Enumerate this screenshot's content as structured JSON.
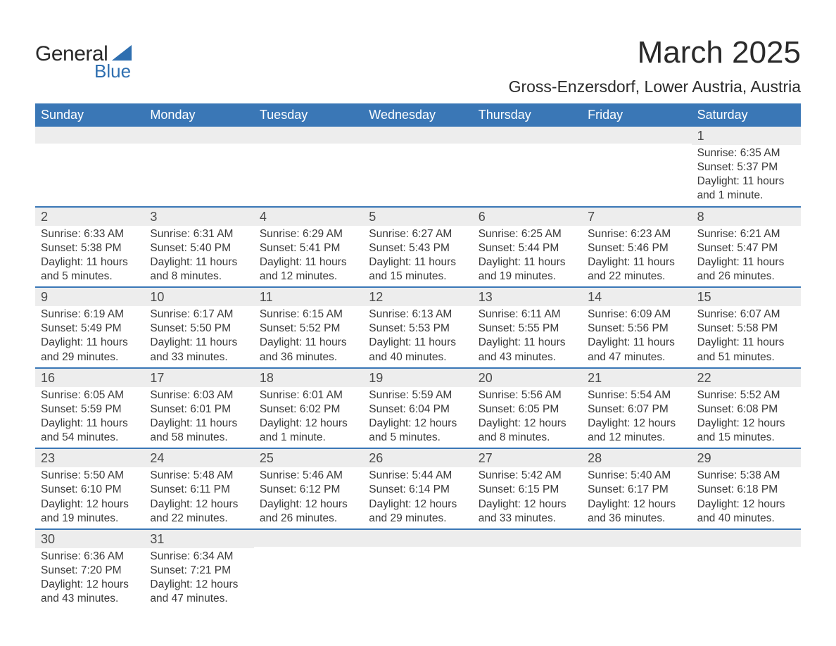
{
  "brand": {
    "general": "General",
    "blue": "Blue",
    "triangle_color": "#2f6fb0"
  },
  "header": {
    "month_title": "March 2025",
    "location": "Gross-Enzersdorf, Lower Austria, Austria"
  },
  "calendar": {
    "header_bg": "#3a77b6",
    "header_fg": "#ffffff",
    "daynum_bg": "#ededed",
    "row_border": "#3a77b6",
    "days_of_week": [
      "Sunday",
      "Monday",
      "Tuesday",
      "Wednesday",
      "Thursday",
      "Friday",
      "Saturday"
    ],
    "weeks": [
      [
        {
          "day": "",
          "sunrise": "",
          "sunset": "",
          "daylight": ""
        },
        {
          "day": "",
          "sunrise": "",
          "sunset": "",
          "daylight": ""
        },
        {
          "day": "",
          "sunrise": "",
          "sunset": "",
          "daylight": ""
        },
        {
          "day": "",
          "sunrise": "",
          "sunset": "",
          "daylight": ""
        },
        {
          "day": "",
          "sunrise": "",
          "sunset": "",
          "daylight": ""
        },
        {
          "day": "",
          "sunrise": "",
          "sunset": "",
          "daylight": ""
        },
        {
          "day": "1",
          "sunrise": "Sunrise: 6:35 AM",
          "sunset": "Sunset: 5:37 PM",
          "daylight": "Daylight: 11 hours and 1 minute."
        }
      ],
      [
        {
          "day": "2",
          "sunrise": "Sunrise: 6:33 AM",
          "sunset": "Sunset: 5:38 PM",
          "daylight": "Daylight: 11 hours and 5 minutes."
        },
        {
          "day": "3",
          "sunrise": "Sunrise: 6:31 AM",
          "sunset": "Sunset: 5:40 PM",
          "daylight": "Daylight: 11 hours and 8 minutes."
        },
        {
          "day": "4",
          "sunrise": "Sunrise: 6:29 AM",
          "sunset": "Sunset: 5:41 PM",
          "daylight": "Daylight: 11 hours and 12 minutes."
        },
        {
          "day": "5",
          "sunrise": "Sunrise: 6:27 AM",
          "sunset": "Sunset: 5:43 PM",
          "daylight": "Daylight: 11 hours and 15 minutes."
        },
        {
          "day": "6",
          "sunrise": "Sunrise: 6:25 AM",
          "sunset": "Sunset: 5:44 PM",
          "daylight": "Daylight: 11 hours and 19 minutes."
        },
        {
          "day": "7",
          "sunrise": "Sunrise: 6:23 AM",
          "sunset": "Sunset: 5:46 PM",
          "daylight": "Daylight: 11 hours and 22 minutes."
        },
        {
          "day": "8",
          "sunrise": "Sunrise: 6:21 AM",
          "sunset": "Sunset: 5:47 PM",
          "daylight": "Daylight: 11 hours and 26 minutes."
        }
      ],
      [
        {
          "day": "9",
          "sunrise": "Sunrise: 6:19 AM",
          "sunset": "Sunset: 5:49 PM",
          "daylight": "Daylight: 11 hours and 29 minutes."
        },
        {
          "day": "10",
          "sunrise": "Sunrise: 6:17 AM",
          "sunset": "Sunset: 5:50 PM",
          "daylight": "Daylight: 11 hours and 33 minutes."
        },
        {
          "day": "11",
          "sunrise": "Sunrise: 6:15 AM",
          "sunset": "Sunset: 5:52 PM",
          "daylight": "Daylight: 11 hours and 36 minutes."
        },
        {
          "day": "12",
          "sunrise": "Sunrise: 6:13 AM",
          "sunset": "Sunset: 5:53 PM",
          "daylight": "Daylight: 11 hours and 40 minutes."
        },
        {
          "day": "13",
          "sunrise": "Sunrise: 6:11 AM",
          "sunset": "Sunset: 5:55 PM",
          "daylight": "Daylight: 11 hours and 43 minutes."
        },
        {
          "day": "14",
          "sunrise": "Sunrise: 6:09 AM",
          "sunset": "Sunset: 5:56 PM",
          "daylight": "Daylight: 11 hours and 47 minutes."
        },
        {
          "day": "15",
          "sunrise": "Sunrise: 6:07 AM",
          "sunset": "Sunset: 5:58 PM",
          "daylight": "Daylight: 11 hours and 51 minutes."
        }
      ],
      [
        {
          "day": "16",
          "sunrise": "Sunrise: 6:05 AM",
          "sunset": "Sunset: 5:59 PM",
          "daylight": "Daylight: 11 hours and 54 minutes."
        },
        {
          "day": "17",
          "sunrise": "Sunrise: 6:03 AM",
          "sunset": "Sunset: 6:01 PM",
          "daylight": "Daylight: 11 hours and 58 minutes."
        },
        {
          "day": "18",
          "sunrise": "Sunrise: 6:01 AM",
          "sunset": "Sunset: 6:02 PM",
          "daylight": "Daylight: 12 hours and 1 minute."
        },
        {
          "day": "19",
          "sunrise": "Sunrise: 5:59 AM",
          "sunset": "Sunset: 6:04 PM",
          "daylight": "Daylight: 12 hours and 5 minutes."
        },
        {
          "day": "20",
          "sunrise": "Sunrise: 5:56 AM",
          "sunset": "Sunset: 6:05 PM",
          "daylight": "Daylight: 12 hours and 8 minutes."
        },
        {
          "day": "21",
          "sunrise": "Sunrise: 5:54 AM",
          "sunset": "Sunset: 6:07 PM",
          "daylight": "Daylight: 12 hours and 12 minutes."
        },
        {
          "day": "22",
          "sunrise": "Sunrise: 5:52 AM",
          "sunset": "Sunset: 6:08 PM",
          "daylight": "Daylight: 12 hours and 15 minutes."
        }
      ],
      [
        {
          "day": "23",
          "sunrise": "Sunrise: 5:50 AM",
          "sunset": "Sunset: 6:10 PM",
          "daylight": "Daylight: 12 hours and 19 minutes."
        },
        {
          "day": "24",
          "sunrise": "Sunrise: 5:48 AM",
          "sunset": "Sunset: 6:11 PM",
          "daylight": "Daylight: 12 hours and 22 minutes."
        },
        {
          "day": "25",
          "sunrise": "Sunrise: 5:46 AM",
          "sunset": "Sunset: 6:12 PM",
          "daylight": "Daylight: 12 hours and 26 minutes."
        },
        {
          "day": "26",
          "sunrise": "Sunrise: 5:44 AM",
          "sunset": "Sunset: 6:14 PM",
          "daylight": "Daylight: 12 hours and 29 minutes."
        },
        {
          "day": "27",
          "sunrise": "Sunrise: 5:42 AM",
          "sunset": "Sunset: 6:15 PM",
          "daylight": "Daylight: 12 hours and 33 minutes."
        },
        {
          "day": "28",
          "sunrise": "Sunrise: 5:40 AM",
          "sunset": "Sunset: 6:17 PM",
          "daylight": "Daylight: 12 hours and 36 minutes."
        },
        {
          "day": "29",
          "sunrise": "Sunrise: 5:38 AM",
          "sunset": "Sunset: 6:18 PM",
          "daylight": "Daylight: 12 hours and 40 minutes."
        }
      ],
      [
        {
          "day": "30",
          "sunrise": "Sunrise: 6:36 AM",
          "sunset": "Sunset: 7:20 PM",
          "daylight": "Daylight: 12 hours and 43 minutes."
        },
        {
          "day": "31",
          "sunrise": "Sunrise: 6:34 AM",
          "sunset": "Sunset: 7:21 PM",
          "daylight": "Daylight: 12 hours and 47 minutes."
        },
        {
          "day": "",
          "sunrise": "",
          "sunset": "",
          "daylight": ""
        },
        {
          "day": "",
          "sunrise": "",
          "sunset": "",
          "daylight": ""
        },
        {
          "day": "",
          "sunrise": "",
          "sunset": "",
          "daylight": ""
        },
        {
          "day": "",
          "sunrise": "",
          "sunset": "",
          "daylight": ""
        },
        {
          "day": "",
          "sunrise": "",
          "sunset": "",
          "daylight": ""
        }
      ]
    ]
  }
}
